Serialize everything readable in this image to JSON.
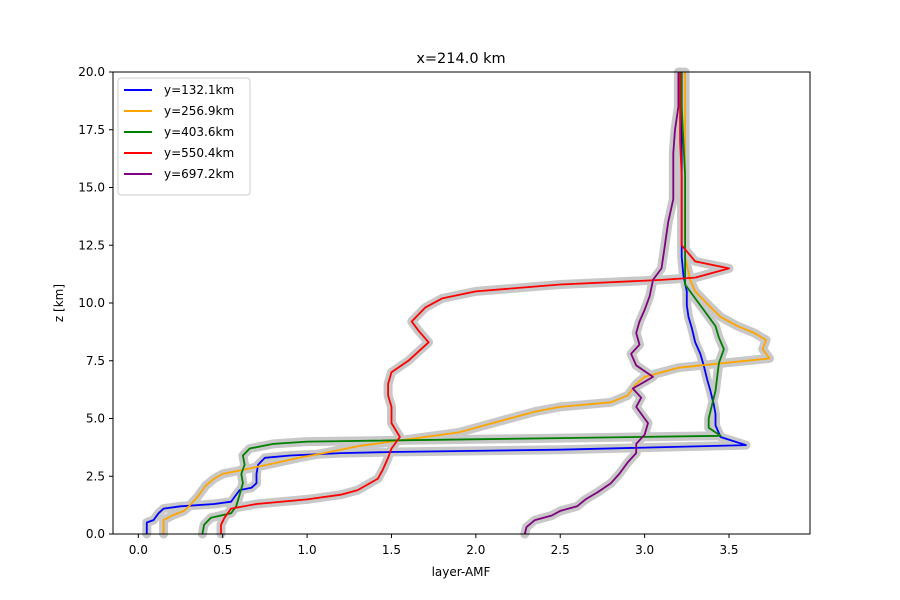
{
  "chart_data": {
    "type": "line",
    "title": "x=214.0 km",
    "xlabel": "layer-AMF",
    "ylabel": "z [km]",
    "xlim": [
      -0.15,
      3.98
    ],
    "ylim": [
      0,
      20
    ],
    "xticks": [
      0.0,
      0.5,
      1.0,
      1.5,
      2.0,
      2.5,
      3.0,
      3.5
    ],
    "xtick_labels": [
      "0.0",
      "0.5",
      "1.0",
      "1.5",
      "2.0",
      "2.5",
      "3.0",
      "3.5"
    ],
    "yticks": [
      0,
      2.5,
      5,
      7.5,
      10,
      12.5,
      15,
      17.5,
      20
    ],
    "ytick_labels": [
      "0.0",
      "2.5",
      "5.0",
      "7.5",
      "10.0",
      "12.5",
      "15.0",
      "17.5",
      "20.0"
    ],
    "grid": false,
    "legend_position": "upper-left",
    "uncertainty_band_color": "#c8c8c8",
    "series": [
      {
        "name": "y=132.1km",
        "color": "#0000ff",
        "points": [
          [
            0.05,
            0.0
          ],
          [
            0.05,
            0.5
          ],
          [
            0.09,
            0.6
          ],
          [
            0.12,
            0.9
          ],
          [
            0.15,
            1.1
          ],
          [
            0.25,
            1.2
          ],
          [
            0.45,
            1.3
          ],
          [
            0.55,
            1.4
          ],
          [
            0.57,
            1.6
          ],
          [
            0.6,
            1.9
          ],
          [
            0.67,
            2.0
          ],
          [
            0.7,
            2.2
          ],
          [
            0.7,
            2.6
          ],
          [
            0.71,
            3.0
          ],
          [
            0.75,
            3.3
          ],
          [
            0.9,
            3.4
          ],
          [
            1.2,
            3.5
          ],
          [
            1.5,
            3.55
          ],
          [
            2.5,
            3.65
          ],
          [
            3.6,
            3.85
          ],
          [
            3.45,
            4.2
          ],
          [
            3.42,
            4.7
          ],
          [
            3.42,
            5.2
          ],
          [
            3.41,
            5.6
          ],
          [
            3.39,
            6.2
          ],
          [
            3.37,
            6.7
          ],
          [
            3.35,
            7.3
          ],
          [
            3.33,
            7.8
          ],
          [
            3.3,
            8.3
          ],
          [
            3.28,
            8.9
          ],
          [
            3.26,
            9.4
          ],
          [
            3.25,
            9.9
          ],
          [
            3.25,
            10.5
          ],
          [
            3.23,
            11.2
          ],
          [
            3.22,
            12.0
          ],
          [
            3.22,
            13.5
          ],
          [
            3.22,
            15.0
          ],
          [
            3.22,
            17.0
          ],
          [
            3.22,
            18.5
          ],
          [
            3.22,
            20.0
          ]
        ]
      },
      {
        "name": "y=256.9km",
        "color": "#ffa500",
        "points": [
          [
            0.15,
            0.0
          ],
          [
            0.15,
            0.6
          ],
          [
            0.2,
            0.8
          ],
          [
            0.27,
            1.0
          ],
          [
            0.3,
            1.2
          ],
          [
            0.35,
            1.6
          ],
          [
            0.4,
            2.1
          ],
          [
            0.45,
            2.4
          ],
          [
            0.5,
            2.6
          ],
          [
            0.6,
            2.75
          ],
          [
            0.7,
            2.9
          ],
          [
            0.8,
            3.05
          ],
          [
            0.95,
            3.3
          ],
          [
            1.1,
            3.5
          ],
          [
            1.3,
            3.8
          ],
          [
            1.6,
            4.1
          ],
          [
            1.9,
            4.4
          ],
          [
            2.05,
            4.7
          ],
          [
            2.2,
            5.0
          ],
          [
            2.35,
            5.3
          ],
          [
            2.5,
            5.5
          ],
          [
            2.8,
            5.7
          ],
          [
            2.9,
            6.0
          ],
          [
            2.95,
            6.5
          ],
          [
            3.0,
            6.8
          ],
          [
            3.2,
            7.2
          ],
          [
            3.74,
            7.6
          ],
          [
            3.7,
            8.0
          ],
          [
            3.72,
            8.4
          ],
          [
            3.65,
            8.7
          ],
          [
            3.55,
            9.0
          ],
          [
            3.45,
            9.4
          ],
          [
            3.38,
            9.9
          ],
          [
            3.3,
            10.5
          ],
          [
            3.27,
            11.0
          ],
          [
            3.24,
            12.0
          ],
          [
            3.24,
            13.5
          ],
          [
            3.24,
            15.0
          ],
          [
            3.24,
            17.0
          ],
          [
            3.24,
            18.5
          ],
          [
            3.24,
            20.0
          ]
        ]
      },
      {
        "name": "y=403.6km",
        "color": "#008000",
        "points": [
          [
            0.38,
            0.0
          ],
          [
            0.39,
            0.4
          ],
          [
            0.43,
            0.7
          ],
          [
            0.55,
            0.9
          ],
          [
            0.58,
            1.2
          ],
          [
            0.6,
            1.7
          ],
          [
            0.62,
            2.2
          ],
          [
            0.61,
            2.6
          ],
          [
            0.63,
            3.0
          ],
          [
            0.62,
            3.4
          ],
          [
            0.66,
            3.7
          ],
          [
            0.8,
            3.9
          ],
          [
            1.0,
            4.0
          ],
          [
            2.5,
            4.15
          ],
          [
            3.45,
            4.25
          ],
          [
            3.38,
            4.6
          ],
          [
            3.38,
            5.0
          ],
          [
            3.4,
            5.6
          ],
          [
            3.42,
            6.2
          ],
          [
            3.43,
            6.8
          ],
          [
            3.44,
            7.4
          ],
          [
            3.47,
            8.0
          ],
          [
            3.44,
            8.5
          ],
          [
            3.42,
            9.0
          ],
          [
            3.35,
            9.7
          ],
          [
            3.3,
            10.2
          ],
          [
            3.24,
            10.8
          ],
          [
            3.24,
            11.5
          ],
          [
            3.24,
            12.5
          ],
          [
            3.24,
            14.0
          ],
          [
            3.24,
            15.5
          ],
          [
            3.23,
            17.0
          ],
          [
            3.22,
            18.5
          ],
          [
            3.22,
            20.0
          ]
        ]
      },
      {
        "name": "y=550.4km",
        "color": "#ff0000",
        "points": [
          [
            0.49,
            0.0
          ],
          [
            0.49,
            0.4
          ],
          [
            0.51,
            0.7
          ],
          [
            0.55,
            1.1
          ],
          [
            0.7,
            1.3
          ],
          [
            1.0,
            1.5
          ],
          [
            1.2,
            1.7
          ],
          [
            1.3,
            1.9
          ],
          [
            1.42,
            2.4
          ],
          [
            1.45,
            2.8
          ],
          [
            1.48,
            3.3
          ],
          [
            1.5,
            3.7
          ],
          [
            1.55,
            4.2
          ],
          [
            1.5,
            4.8
          ],
          [
            1.5,
            5.5
          ],
          [
            1.48,
            6.0
          ],
          [
            1.48,
            6.5
          ],
          [
            1.5,
            7.0
          ],
          [
            1.6,
            7.5
          ],
          [
            1.72,
            8.3
          ],
          [
            1.66,
            8.8
          ],
          [
            1.62,
            9.2
          ],
          [
            1.7,
            9.8
          ],
          [
            1.8,
            10.2
          ],
          [
            2.0,
            10.5
          ],
          [
            2.5,
            10.8
          ],
          [
            3.1,
            11.0
          ],
          [
            3.3,
            11.1
          ],
          [
            3.5,
            11.5
          ],
          [
            3.3,
            11.8
          ],
          [
            3.22,
            12.5
          ],
          [
            3.22,
            14.0
          ],
          [
            3.22,
            15.5
          ],
          [
            3.21,
            17.0
          ],
          [
            3.21,
            18.5
          ],
          [
            3.21,
            20.0
          ]
        ]
      },
      {
        "name": "y=697.2km",
        "color": "#800080",
        "points": [
          [
            2.29,
            0.0
          ],
          [
            2.3,
            0.3
          ],
          [
            2.35,
            0.6
          ],
          [
            2.45,
            0.8
          ],
          [
            2.5,
            1.0
          ],
          [
            2.6,
            1.2
          ],
          [
            2.65,
            1.5
          ],
          [
            2.72,
            1.8
          ],
          [
            2.8,
            2.2
          ],
          [
            2.85,
            2.6
          ],
          [
            2.9,
            3.1
          ],
          [
            2.95,
            3.5
          ],
          [
            2.95,
            3.9
          ],
          [
            3.0,
            4.3
          ],
          [
            3.02,
            4.8
          ],
          [
            2.98,
            5.2
          ],
          [
            2.95,
            5.5
          ],
          [
            2.98,
            5.9
          ],
          [
            2.93,
            6.3
          ],
          [
            3.05,
            6.8
          ],
          [
            2.95,
            7.3
          ],
          [
            2.92,
            7.8
          ],
          [
            2.97,
            8.2
          ],
          [
            2.95,
            8.7
          ],
          [
            2.97,
            9.2
          ],
          [
            3.0,
            9.7
          ],
          [
            3.03,
            10.3
          ],
          [
            3.05,
            11.0
          ],
          [
            3.1,
            11.5
          ],
          [
            3.12,
            12.5
          ],
          [
            3.14,
            13.5
          ],
          [
            3.17,
            14.5
          ],
          [
            3.17,
            15.5
          ],
          [
            3.17,
            16.5
          ],
          [
            3.18,
            17.5
          ],
          [
            3.2,
            18.5
          ],
          [
            3.2,
            20.0
          ]
        ]
      }
    ]
  }
}
